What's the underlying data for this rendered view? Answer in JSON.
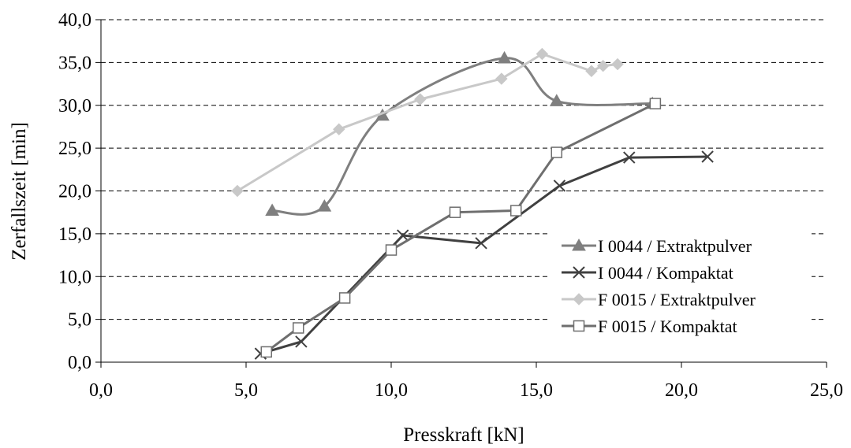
{
  "chart_data": {
    "type": "line",
    "xlabel": "Presskraft [kN]",
    "ylabel": "Zerfallszeit [min]",
    "xlim": [
      0,
      25
    ],
    "ylim": [
      0,
      40
    ],
    "x_ticks": [
      "0,0",
      "5,0",
      "10,0",
      "15,0",
      "20,0",
      "25,0"
    ],
    "y_ticks": [
      "0,0",
      "5,0",
      "10,0",
      "15,0",
      "20,0",
      "25,0",
      "30,0",
      "35,0",
      "40,0"
    ],
    "grid": "horizontal dashed",
    "legend_position": "right",
    "series": [
      {
        "name": "I 0044 / Extraktpulver",
        "marker": "triangle",
        "color": "#7f7f7f",
        "smooth": true,
        "points": [
          [
            5.9,
            17.7
          ],
          [
            7.7,
            18.2
          ],
          [
            9.7,
            28.8
          ],
          [
            13.9,
            35.5
          ],
          [
            15.7,
            30.5
          ],
          [
            19.0,
            30.2
          ]
        ]
      },
      {
        "name": "I 0044 / Kompaktat",
        "marker": "x",
        "color": "#404040",
        "smooth": false,
        "points": [
          [
            5.5,
            1.0
          ],
          [
            6.9,
            2.4
          ],
          [
            10.4,
            14.8
          ],
          [
            13.1,
            13.9
          ],
          [
            15.8,
            20.6
          ],
          [
            18.2,
            23.9
          ],
          [
            20.9,
            24.0
          ]
        ]
      },
      {
        "name": "F 0015 / Extraktpulver",
        "marker": "diamond",
        "color": "#c8c8c8",
        "smooth": false,
        "points": [
          [
            4.7,
            20.0
          ],
          [
            8.2,
            27.2
          ],
          [
            11.0,
            30.7
          ],
          [
            13.8,
            33.1
          ],
          [
            15.2,
            36.0
          ],
          [
            16.9,
            34.0
          ],
          [
            17.3,
            34.6
          ],
          [
            17.8,
            34.8
          ]
        ]
      },
      {
        "name": "F 0015 / Kompaktat",
        "marker": "square-open",
        "color": "#6e6e6e",
        "smooth": false,
        "points": [
          [
            5.7,
            1.2
          ],
          [
            6.8,
            4.0
          ],
          [
            8.4,
            7.5
          ],
          [
            10.0,
            13.1
          ],
          [
            12.2,
            17.5
          ],
          [
            14.3,
            17.7
          ],
          [
            15.7,
            24.5
          ],
          [
            19.1,
            30.2
          ]
        ]
      }
    ]
  }
}
